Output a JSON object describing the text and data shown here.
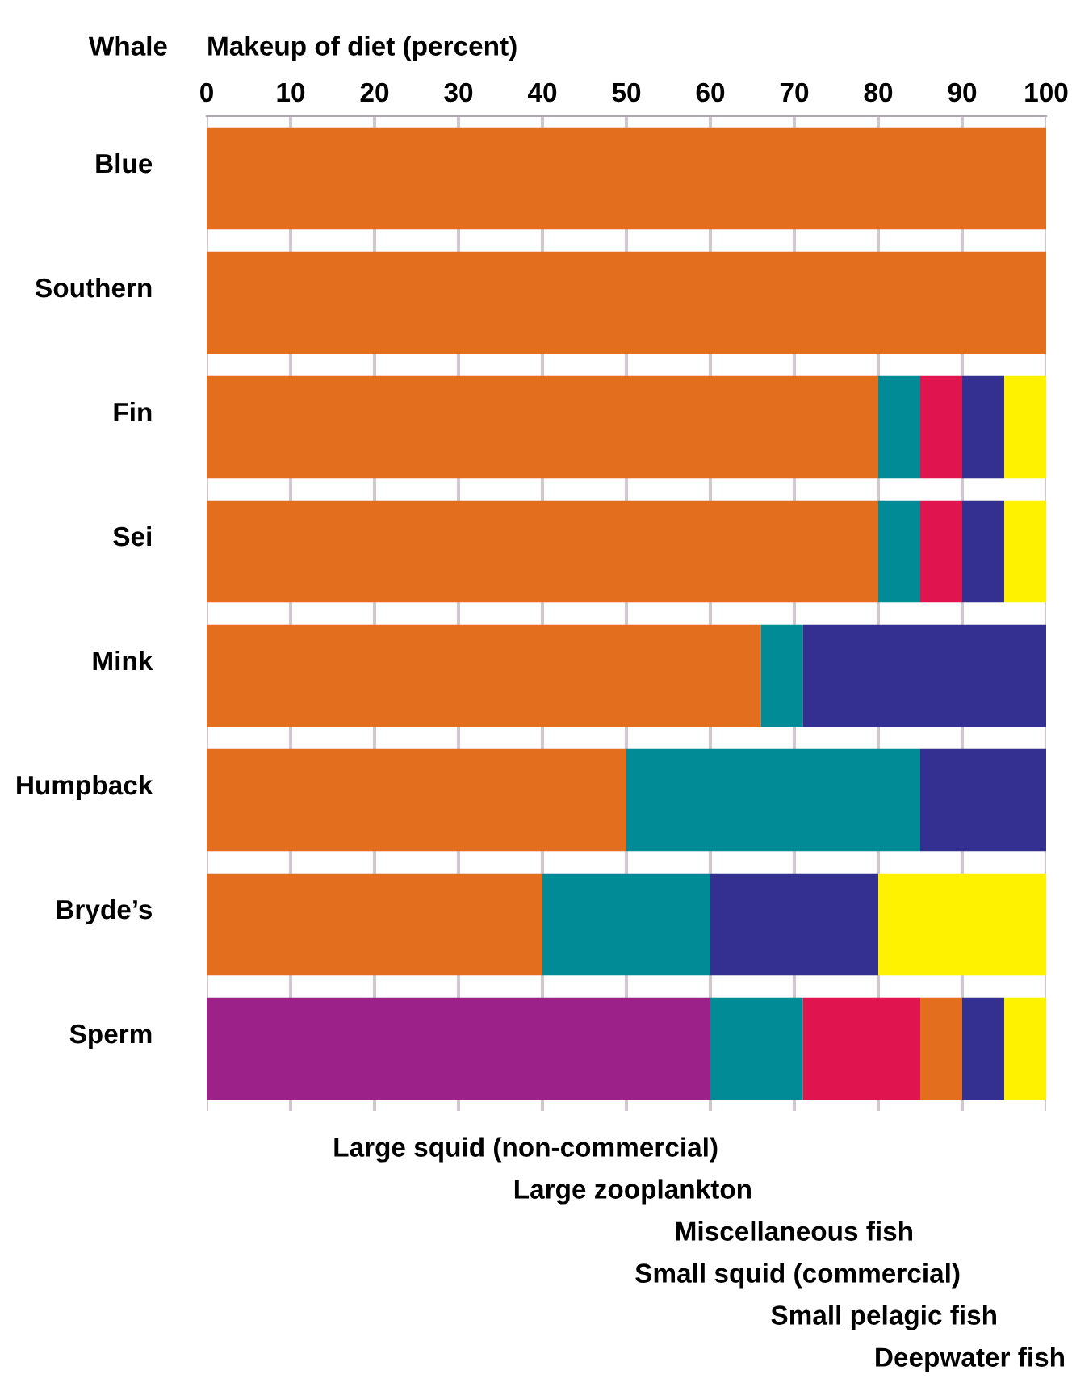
{
  "chart_data": {
    "type": "bar",
    "orientation": "horizontal",
    "xlabel": "Makeup of diet (percent)",
    "ylabel": "Whale",
    "categories": [
      "Blue",
      "Southern",
      "Fin",
      "Sei",
      "Mink",
      "Humpback",
      "Bryde’s",
      "Sperm"
    ],
    "series": [
      {
        "color": "#e26e1e",
        "values": [
          100,
          100,
          80,
          80,
          66,
          50,
          40,
          5
        ],
        "base": [
          0,
          0,
          0,
          0,
          0,
          0,
          0,
          85
        ]
      },
      {
        "color": "#008b96",
        "values": [
          null,
          null,
          5,
          5,
          5,
          35,
          20,
          11
        ],
        "base": [
          null,
          null,
          80,
          80,
          66,
          50,
          40,
          60
        ]
      },
      {
        "color": "#e01550",
        "values": [
          null,
          null,
          5,
          5,
          null,
          null,
          null,
          14
        ],
        "base": [
          null,
          null,
          85,
          85,
          null,
          null,
          null,
          71
        ]
      },
      {
        "color": "#333092",
        "values": [
          null,
          null,
          5,
          5,
          29,
          15,
          20,
          5
        ],
        "base": [
          null,
          null,
          90,
          90,
          71,
          85,
          60,
          90
        ]
      },
      {
        "color": "#fff200",
        "values": [
          null,
          null,
          5,
          5,
          null,
          null,
          20,
          5
        ],
        "base": [
          null,
          null,
          95,
          95,
          null,
          null,
          80,
          95
        ]
      },
      {
        "color": "#9c2188",
        "values": [
          null,
          null,
          null,
          null,
          null,
          null,
          null,
          60
        ],
        "base": [
          null,
          null,
          null,
          null,
          null,
          null,
          null,
          0
        ]
      }
    ],
    "xlim": [
      0,
      100
    ],
    "xticks": [
      0,
      10,
      20,
      30,
      40,
      50,
      60,
      70,
      80,
      90,
      100
    ],
    "grid": "x",
    "legend": false,
    "annotations": [
      "Large squid (non-commercial)",
      "Large zooplankton",
      "Miscellaneous fish",
      "Small squid (commercial)",
      "Small pelagic fish",
      "Deepwater fish"
    ]
  }
}
